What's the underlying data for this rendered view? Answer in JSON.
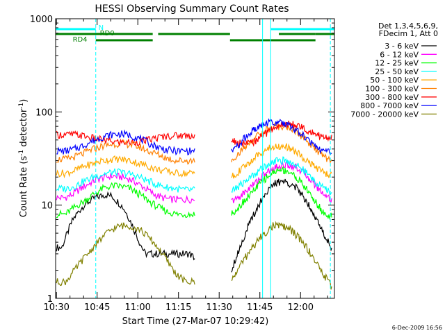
{
  "chart_data": {
    "type": "line",
    "title": "HESSI Observing Summary Count Rates",
    "xlabel": "Start Time (27-Mar-07 10:29:42)",
    "ylabel_main": "Count Rate (s",
    "ylabel_sup1": "-1",
    "ylabel_mid": " detector",
    "ylabel_sup2": "-1",
    "ylabel_end": ")",
    "ylabel_full": "Count Rate (s^-1 detector^-1)",
    "yscale": "log",
    "ylim": [
      1,
      1000
    ],
    "xlim": [
      "10:29:42",
      "12:12:30"
    ],
    "y_ticks": [
      {
        "value": 1,
        "label": "1"
      },
      {
        "value": 10,
        "label": "10"
      },
      {
        "value": 100,
        "label": "100"
      },
      {
        "value": 1000,
        "label": "1000"
      }
    ],
    "x_ticks": [
      {
        "time": "10:30",
        "label": "10:30"
      },
      {
        "time": "10:45",
        "label": "10:45"
      },
      {
        "time": "11:00",
        "label": "11:00"
      },
      {
        "time": "11:15",
        "label": "11:15"
      },
      {
        "time": "11:30",
        "label": "11:30"
      },
      {
        "time": "11:45",
        "label": "11:45"
      },
      {
        "time": "12:00",
        "label": "12:00"
      }
    ],
    "legend_header": [
      "Det 1,3,4,5,6,9,",
      "FDecim 1, Att 0"
    ],
    "legend_placement": "right",
    "series": [
      {
        "name": "3 - 6 keV",
        "color": "#000000",
        "values": [
          [
            1,
            3.5
          ],
          [
            1,
            3.5
          ],
          [
            1,
            5
          ],
          [
            1,
            7
          ],
          [
            1,
            8.5
          ],
          [
            1,
            10
          ],
          [
            1,
            11
          ],
          [
            1,
            12
          ],
          [
            1,
            12.5
          ],
          [
            1,
            13
          ],
          [
            1,
            12.5
          ],
          [
            1,
            11
          ],
          [
            1,
            9.5
          ],
          [
            1,
            7.5
          ],
          [
            1,
            5.5
          ],
          [
            1,
            4
          ],
          [
            1,
            3
          ],
          [
            1,
            3
          ],
          [
            1,
            3
          ],
          [
            1,
            3
          ],
          [
            1,
            3
          ],
          [
            1,
            3
          ],
          [
            1,
            3
          ],
          [
            1,
            3
          ],
          [
            1,
            3
          ],
          [
            1,
            2.7
          ]
        ],
        "values2": [
          [
            1,
            2
          ],
          [
            1,
            3
          ],
          [
            1,
            4.5
          ],
          [
            1,
            6.5
          ],
          [
            1,
            9
          ],
          [
            1,
            12
          ],
          [
            1,
            15
          ],
          [
            1,
            17
          ],
          [
            1,
            18
          ],
          [
            1,
            17.5
          ],
          [
            1,
            16
          ],
          [
            1,
            13.5
          ],
          [
            1,
            11
          ],
          [
            1,
            8.5
          ],
          [
            1,
            6
          ],
          [
            1,
            4.5
          ],
          [
            1,
            3.5
          ]
        ]
      },
      {
        "name": "6 - 12 keV",
        "color": "#ff00ff",
        "values": [
          [
            1,
            12
          ],
          [
            1,
            12
          ],
          [
            1,
            13
          ],
          [
            1,
            15
          ],
          [
            1,
            17
          ],
          [
            1,
            19
          ],
          [
            1,
            20
          ],
          [
            1,
            20.5
          ],
          [
            1,
            20
          ],
          [
            1,
            19
          ],
          [
            1,
            17
          ],
          [
            1,
            15
          ],
          [
            1,
            13
          ],
          [
            1,
            12
          ],
          [
            1,
            11.5
          ],
          [
            1,
            11.5
          ],
          [
            1,
            11.5
          ],
          [
            1,
            11.5
          ]
        ],
        "values2": [
          [
            1,
            11
          ],
          [
            1,
            12
          ],
          [
            1,
            14
          ],
          [
            1,
            16.5
          ],
          [
            1,
            19.5
          ],
          [
            1,
            22.5
          ],
          [
            1,
            25
          ],
          [
            1,
            27
          ],
          [
            1,
            27
          ],
          [
            1,
            25.5
          ],
          [
            1,
            22.5
          ],
          [
            1,
            19
          ],
          [
            1,
            15.5
          ],
          [
            1,
            13
          ],
          [
            1,
            11.5
          ]
        ]
      },
      {
        "name": "12 - 25 keV",
        "color": "#00ff00",
        "values": [
          [
            1,
            8
          ],
          [
            1,
            8
          ],
          [
            1,
            9.5
          ],
          [
            1,
            11
          ],
          [
            1,
            13
          ],
          [
            1,
            15
          ],
          [
            1,
            16
          ],
          [
            1,
            16
          ],
          [
            1,
            15
          ],
          [
            1,
            13
          ],
          [
            1,
            11
          ],
          [
            1,
            9.5
          ],
          [
            1,
            8.5
          ],
          [
            1,
            8
          ],
          [
            1,
            8
          ],
          [
            1,
            8
          ]
        ],
        "values2": [
          [
            1,
            8
          ],
          [
            1,
            9.5
          ],
          [
            1,
            11.5
          ],
          [
            1,
            14
          ],
          [
            1,
            17
          ],
          [
            1,
            20
          ],
          [
            1,
            23
          ],
          [
            1,
            24
          ],
          [
            1,
            23
          ],
          [
            1,
            20
          ],
          [
            1,
            16.5
          ],
          [
            1,
            13
          ],
          [
            1,
            10
          ],
          [
            1,
            8
          ],
          [
            1,
            7.5
          ]
        ]
      },
      {
        "name": "25 - 50 keV",
        "color": "#00ffff",
        "values": [
          [
            1,
            15
          ],
          [
            1,
            15
          ],
          [
            1,
            16
          ],
          [
            1,
            18
          ],
          [
            1,
            20
          ],
          [
            1,
            21.5
          ],
          [
            1,
            22.5
          ],
          [
            1,
            22.5
          ],
          [
            1,
            21.5
          ],
          [
            1,
            20
          ],
          [
            1,
            18
          ],
          [
            1,
            16.5
          ],
          [
            1,
            15.5
          ],
          [
            1,
            15
          ],
          [
            1,
            14.5
          ],
          [
            1,
            14.5
          ]
        ],
        "values2": [
          [
            1,
            14
          ],
          [
            1,
            16
          ],
          [
            1,
            18.5
          ],
          [
            1,
            21.5
          ],
          [
            1,
            25
          ],
          [
            1,
            28.5
          ],
          [
            1,
            30
          ],
          [
            1,
            30
          ],
          [
            1,
            28
          ],
          [
            1,
            25
          ],
          [
            1,
            21
          ],
          [
            1,
            17.5
          ],
          [
            1,
            15
          ],
          [
            1,
            13.5
          ]
        ]
      },
      {
        "name": "50 - 100 keV",
        "color": "#ffaa00",
        "values": [
          [
            1,
            22
          ],
          [
            1,
            22
          ],
          [
            1,
            23.5
          ],
          [
            1,
            26
          ],
          [
            1,
            28
          ],
          [
            1,
            30
          ],
          [
            1,
            31
          ],
          [
            1,
            31
          ],
          [
            1,
            30
          ],
          [
            1,
            28
          ],
          [
            1,
            26
          ],
          [
            1,
            24
          ],
          [
            1,
            23
          ],
          [
            1,
            22
          ],
          [
            1,
            22
          ],
          [
            1,
            22
          ]
        ],
        "values2": [
          [
            1,
            20
          ],
          [
            1,
            23
          ],
          [
            1,
            27
          ],
          [
            1,
            32
          ],
          [
            1,
            37
          ],
          [
            1,
            41
          ],
          [
            1,
            43
          ],
          [
            1,
            42
          ],
          [
            1,
            39
          ],
          [
            1,
            34
          ],
          [
            1,
            29
          ],
          [
            1,
            25
          ],
          [
            1,
            22
          ],
          [
            1,
            21
          ]
        ]
      },
      {
        "name": "100 - 300 keV",
        "color": "#ff8000",
        "values": [
          [
            1,
            31
          ],
          [
            1,
            31
          ],
          [
            1,
            33
          ],
          [
            1,
            36
          ],
          [
            1,
            40
          ],
          [
            1,
            43
          ],
          [
            1,
            45
          ],
          [
            1,
            46
          ],
          [
            1,
            45
          ],
          [
            1,
            42
          ],
          [
            1,
            38
          ],
          [
            1,
            35
          ],
          [
            1,
            32
          ],
          [
            1,
            30
          ],
          [
            1,
            30
          ],
          [
            1,
            30
          ]
        ],
        "values2": [
          [
            1,
            30
          ],
          [
            1,
            36
          ],
          [
            1,
            44
          ],
          [
            1,
            52
          ],
          [
            1,
            60
          ],
          [
            1,
            67
          ],
          [
            1,
            70
          ],
          [
            1,
            69
          ],
          [
            1,
            64
          ],
          [
            1,
            56
          ],
          [
            1,
            47
          ],
          [
            1,
            39
          ],
          [
            1,
            33
          ],
          [
            1,
            29
          ]
        ]
      },
      {
        "name": "300 - 800 keV",
        "color": "#ff0000",
        "values": [
          [
            1,
            57
          ],
          [
            1,
            57
          ],
          [
            1,
            57
          ],
          [
            1,
            55
          ],
          [
            1,
            52
          ],
          [
            1,
            50
          ],
          [
            1,
            48
          ],
          [
            1,
            47
          ],
          [
            1,
            47
          ],
          [
            1,
            48
          ],
          [
            1,
            50
          ],
          [
            1,
            53
          ],
          [
            1,
            55
          ],
          [
            1,
            56
          ],
          [
            1,
            56
          ],
          [
            1,
            56
          ]
        ],
        "values2": [
          [
            1,
            50
          ],
          [
            1,
            46
          ],
          [
            1,
            45
          ],
          [
            1,
            48
          ],
          [
            1,
            55
          ],
          [
            1,
            63
          ],
          [
            1,
            70
          ],
          [
            1,
            74
          ],
          [
            1,
            73
          ],
          [
            1,
            69
          ],
          [
            1,
            63
          ],
          [
            1,
            57
          ],
          [
            1,
            54
          ],
          [
            1,
            52
          ]
        ]
      },
      {
        "name": "800 - 7000 keV",
        "color": "#0000ff",
        "values": [
          [
            1,
            38
          ],
          [
            1,
            38
          ],
          [
            1,
            40
          ],
          [
            1,
            44
          ],
          [
            1,
            49
          ],
          [
            1,
            54
          ],
          [
            1,
            57
          ],
          [
            1,
            58
          ],
          [
            1,
            56
          ],
          [
            1,
            52
          ],
          [
            1,
            46
          ],
          [
            1,
            42
          ],
          [
            1,
            39
          ],
          [
            1,
            38
          ],
          [
            1,
            38
          ],
          [
            1,
            38
          ]
        ],
        "values2": [
          [
            1,
            37
          ],
          [
            1,
            45
          ],
          [
            1,
            55
          ],
          [
            1,
            64
          ],
          [
            1,
            72
          ],
          [
            1,
            77
          ],
          [
            1,
            78
          ],
          [
            1,
            75
          ],
          [
            1,
            68
          ],
          [
            1,
            58
          ],
          [
            1,
            49
          ],
          [
            1,
            42
          ],
          [
            1,
            38
          ],
          [
            1,
            36
          ]
        ]
      },
      {
        "name": "7000 - 20000 keV",
        "color": "#808000",
        "values": [
          [
            1,
            1.5
          ],
          [
            1,
            1.5
          ],
          [
            1,
            2
          ],
          [
            1,
            2.7
          ],
          [
            1,
            3.5
          ],
          [
            1,
            4.5
          ],
          [
            1,
            5.5
          ],
          [
            1,
            6
          ],
          [
            1,
            6
          ],
          [
            1,
            5.5
          ],
          [
            1,
            4.5
          ],
          [
            1,
            3.5
          ],
          [
            1,
            2.5
          ],
          [
            1,
            1.8
          ],
          [
            1,
            1.5
          ],
          [
            1,
            1.5
          ]
        ],
        "values2": [
          [
            1,
            1.5
          ],
          [
            1,
            2.2
          ],
          [
            1,
            3
          ],
          [
            1,
            4
          ],
          [
            1,
            5
          ],
          [
            1,
            6
          ],
          [
            1,
            6
          ],
          [
            1,
            5.5
          ],
          [
            1,
            4.5
          ],
          [
            1,
            3.5
          ],
          [
            1,
            2.5
          ],
          [
            1,
            1.8
          ],
          [
            1,
            1.3
          ]
        ]
      }
    ],
    "status_bars": [
      {
        "name": "N",
        "color": "#00ffff",
        "segments": [
          [
            "10:29:42",
            "10:44:30"
          ],
          [
            "11:49:00",
            "12:12:30"
          ]
        ]
      },
      {
        "name": "RD0",
        "color": "#008000",
        "segments": [
          [
            "10:29:42",
            "11:05:30"
          ],
          [
            "11:07:30",
            "11:34:00"
          ],
          [
            "11:52:00",
            "12:05:30"
          ],
          [
            "12:05:30",
            "12:12:30"
          ]
        ]
      },
      {
        "name": "RD4",
        "color": "#008000",
        "segments": [
          [
            "10:44:30",
            "11:05:30"
          ],
          [
            "11:34:00",
            "12:05:30"
          ]
        ]
      }
    ],
    "footer_timestamp": "6-Dec-2009 16:56"
  }
}
